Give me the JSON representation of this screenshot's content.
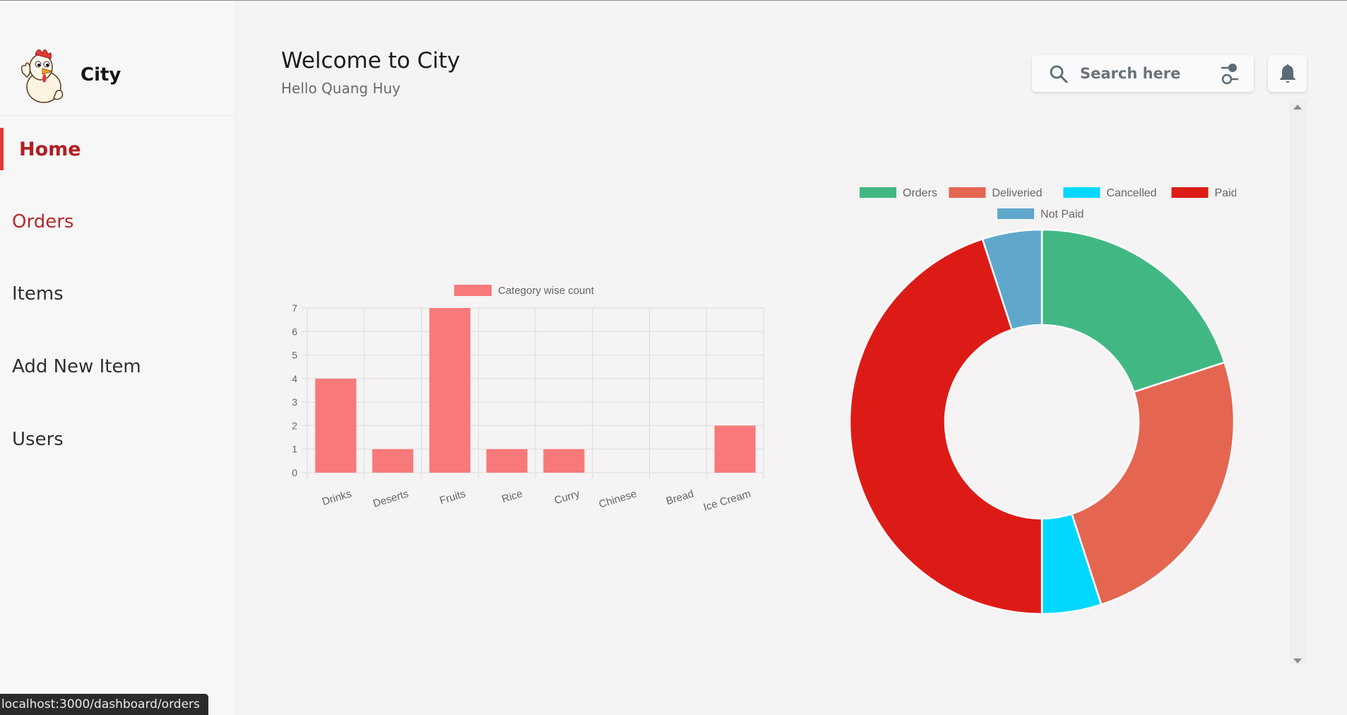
{
  "brand": {
    "name": "City"
  },
  "nav": {
    "items": [
      {
        "label": "Home"
      },
      {
        "label": "Orders"
      },
      {
        "label": "Items"
      },
      {
        "label": "Add New Item"
      },
      {
        "label": "Users"
      }
    ]
  },
  "header": {
    "title": "Welcome to City",
    "subtitle": "Hello Quang Huy"
  },
  "search": {
    "placeholder": "Search here"
  },
  "status_bar": {
    "url": "localhost:3000/dashboard/orders"
  },
  "colors": {
    "accent": "#b11e22",
    "bar": "#f87979",
    "orders": "#41b883",
    "deliveried": "#e46651",
    "cancelled": "#00d8ff",
    "paid": "#dd1b16",
    "not_paid": "#5fa8cc"
  },
  "chart_data": [
    {
      "type": "bar",
      "categories": [
        "Drinks",
        "Deserts",
        "Fruits",
        "Rice",
        "Curry",
        "Chinese",
        "Bread",
        "Ice Cream"
      ],
      "series": [
        {
          "name": "Category wise count",
          "values": [
            4,
            1,
            7,
            1,
            1,
            0,
            0,
            2
          ]
        }
      ],
      "ylim": [
        0,
        7
      ],
      "yticks": [
        0,
        1,
        2,
        3,
        4,
        5,
        6,
        7
      ],
      "grid": true,
      "legend": "top"
    },
    {
      "type": "pie",
      "style": "donut",
      "labels": [
        "Orders",
        "Deliveried",
        "Cancelled",
        "Paid",
        "Not Paid"
      ],
      "values": [
        20,
        25,
        5,
        45,
        5
      ],
      "colors": [
        "#41b883",
        "#e46651",
        "#00d8ff",
        "#dd1b16",
        "#5fa8cc"
      ],
      "legend": "top"
    }
  ]
}
